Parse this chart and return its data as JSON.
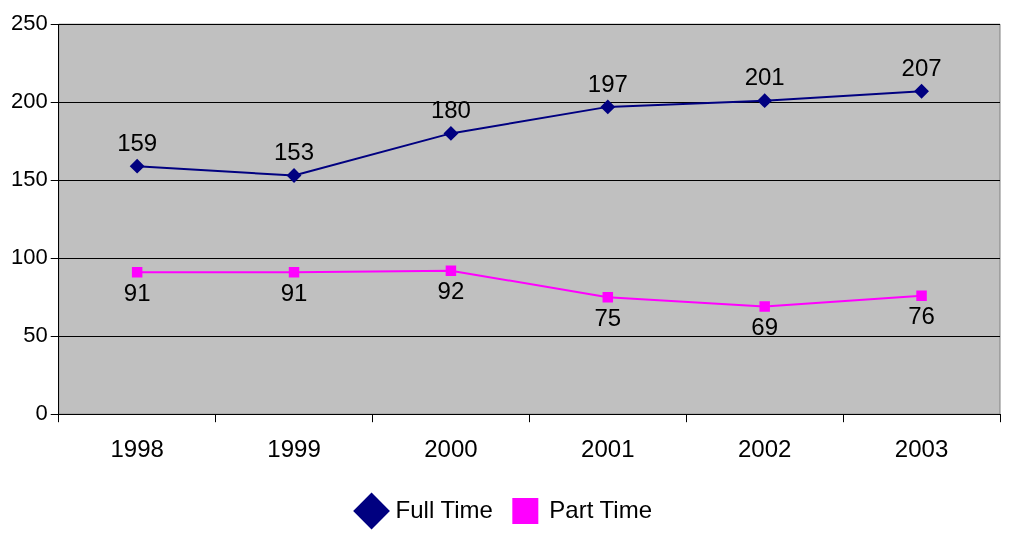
{
  "chart_data": {
    "type": "line",
    "categories": [
      "1998",
      "1999",
      "2000",
      "2001",
      "2002",
      "2003"
    ],
    "series": [
      {
        "name": "Full Time",
        "color": "#000080",
        "marker": "diamond",
        "values": [
          159,
          153,
          180,
          197,
          201,
          207
        ]
      },
      {
        "name": "Part Time",
        "color": "#ff00ff",
        "marker": "square",
        "values": [
          91,
          91,
          92,
          75,
          69,
          76
        ]
      }
    ],
    "ylim": [
      0,
      250
    ],
    "yticks": [
      0,
      50,
      100,
      150,
      200,
      250
    ],
    "grid": "y",
    "legend": "bottom",
    "data_labels": true
  }
}
